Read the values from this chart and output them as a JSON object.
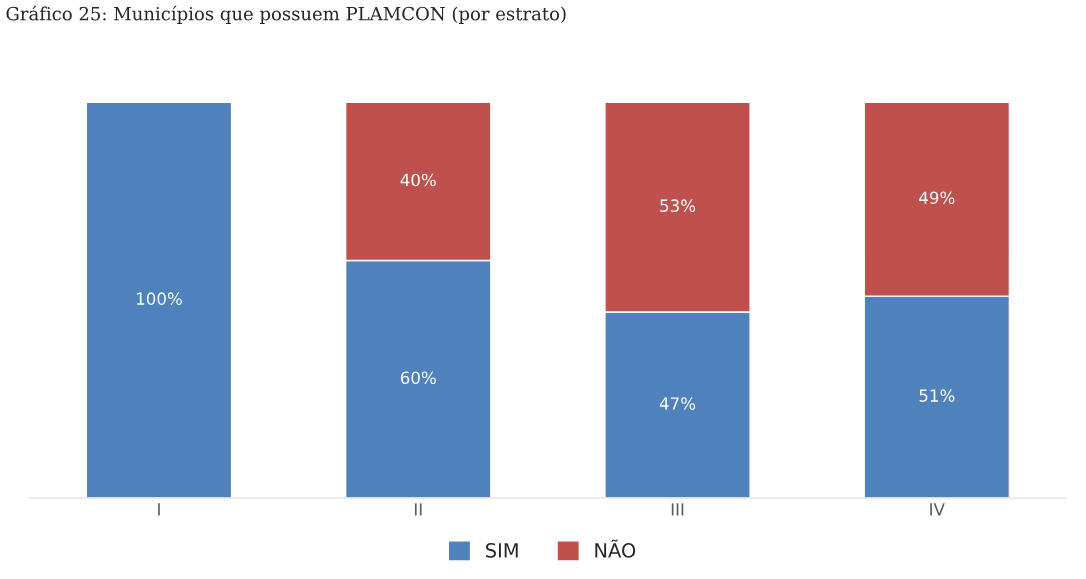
{
  "chart_data": {
    "type": "bar",
    "title": "Gráfico 25: Municípios que possuem PLAMCON (por estrato)",
    "categories": [
      "I",
      "II",
      "III",
      "IV"
    ],
    "stacked": true,
    "legend": "bottom",
    "series": [
      {
        "name": "SIM",
        "color": "#4f81bd",
        "values": [
          100,
          60,
          47,
          51
        ],
        "value_labels": [
          "100%",
          "60%",
          "47%",
          "51%"
        ]
      },
      {
        "name": "NÃO",
        "color": "#c0504d",
        "values": [
          null,
          40,
          53,
          49
        ],
        "value_labels": [
          null,
          "40%",
          "53%",
          "49%"
        ]
      }
    ]
  }
}
